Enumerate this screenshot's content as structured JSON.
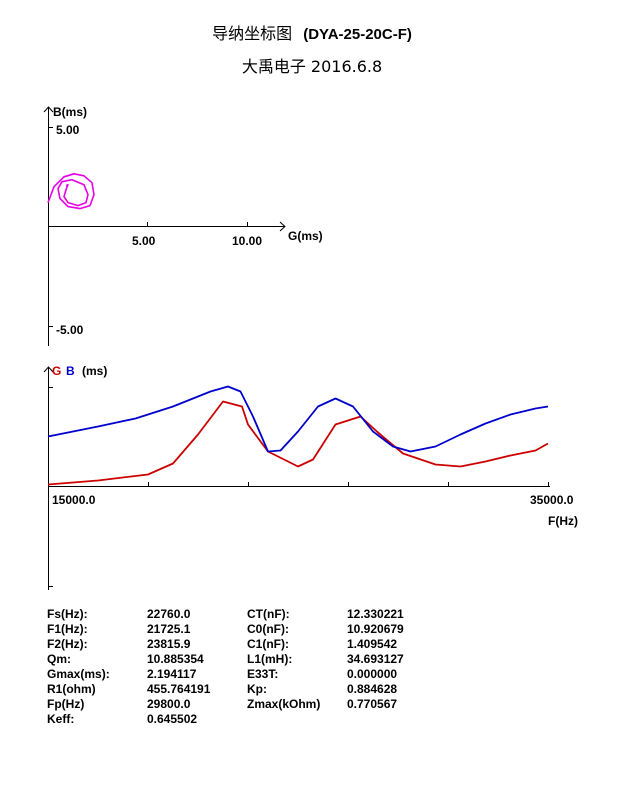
{
  "header": {
    "title": "导纳坐标图",
    "model": "(DYA-25-20C-F)",
    "subtitle": "大禹电子  2016.6.8"
  },
  "chart_data": [
    {
      "type": "scatter",
      "name": "admittance-circle",
      "ylabel": "B(ms)",
      "xlabel": "G(ms)",
      "x_ticks": [
        "5.00",
        "10.00"
      ],
      "y_ticks": [
        "5.00",
        "-5.00"
      ],
      "xlim": [
        0,
        12
      ],
      "ylim": [
        -5,
        5
      ],
      "line_color": "#e600e6",
      "x": [
        0.0,
        0.3,
        0.8,
        1.3,
        1.8,
        2.2,
        2.3,
        2.1,
        1.6,
        1.0,
        0.6,
        0.5,
        0.7,
        1.2,
        1.8,
        2.0,
        1.9,
        1.5,
        1.0,
        0.8,
        0.9,
        1.0,
        0.9
      ],
      "y": [
        1.2,
        2.0,
        2.5,
        2.65,
        2.55,
        2.2,
        1.6,
        1.05,
        0.9,
        1.0,
        1.4,
        1.9,
        2.25,
        2.35,
        2.1,
        1.6,
        1.2,
        1.05,
        1.2,
        1.5,
        1.85,
        2.1,
        2.05
      ]
    },
    {
      "type": "line",
      "name": "frequency-sweep",
      "legend": [
        "G",
        "B"
      ],
      "unit": "(ms)",
      "xlabel": "F(Hz)",
      "xlim": [
        15000.0,
        35000.0
      ],
      "x_tick_labels": [
        "15000.0",
        "35000.0"
      ],
      "series": [
        {
          "name": "G",
          "color": "#cc0000",
          "x": [
            15000,
            17000,
            19000,
            20000,
            21000,
            22000,
            22760,
            23000,
            23800,
            25000,
            25600,
            26500,
            27500,
            28200,
            29200,
            30500,
            31500,
            32500,
            33500,
            34500,
            35000
          ],
          "y": [
            0.02,
            0.06,
            0.12,
            0.23,
            0.52,
            0.85,
            0.8,
            0.62,
            0.35,
            0.2,
            0.27,
            0.62,
            0.7,
            0.54,
            0.33,
            0.22,
            0.2,
            0.25,
            0.31,
            0.36,
            0.43
          ]
        },
        {
          "name": "B",
          "color": "#0000cc",
          "x": [
            15000,
            17000,
            18500,
            20000,
            21500,
            22200,
            22700,
            23200,
            23800,
            24300,
            25000,
            25800,
            26500,
            27200,
            28000,
            28800,
            29500,
            30500,
            31500,
            32500,
            33500,
            34500,
            35000
          ],
          "y": [
            0.5,
            0.6,
            0.68,
            0.8,
            0.95,
            1.0,
            0.95,
            0.7,
            0.35,
            0.36,
            0.55,
            0.8,
            0.88,
            0.8,
            0.55,
            0.4,
            0.35,
            0.4,
            0.52,
            0.63,
            0.72,
            0.78,
            0.8
          ]
        }
      ]
    }
  ],
  "params": [
    [
      "Fs(Hz):",
      "22760.0",
      "CT(nF):",
      "12.330221"
    ],
    [
      "F1(Hz):",
      "21725.1",
      "C0(nF):",
      "10.920679"
    ],
    [
      "F2(Hz):",
      "23815.9",
      "C1(nF):",
      "1.409542"
    ],
    [
      "Qm:",
      "10.885354",
      "L1(mH):",
      "34.693127"
    ],
    [
      "Gmax(ms):",
      "2.194117",
      "E33T:",
      "0.000000"
    ],
    [
      "R1(ohm)",
      "455.764191",
      "Kp:",
      "0.884628"
    ],
    [
      "Fp(Hz)",
      "29800.0",
      "Zmax(kOhm)",
      "0.770567"
    ],
    [
      "Keff:",
      "0.645502",
      "",
      ""
    ]
  ]
}
